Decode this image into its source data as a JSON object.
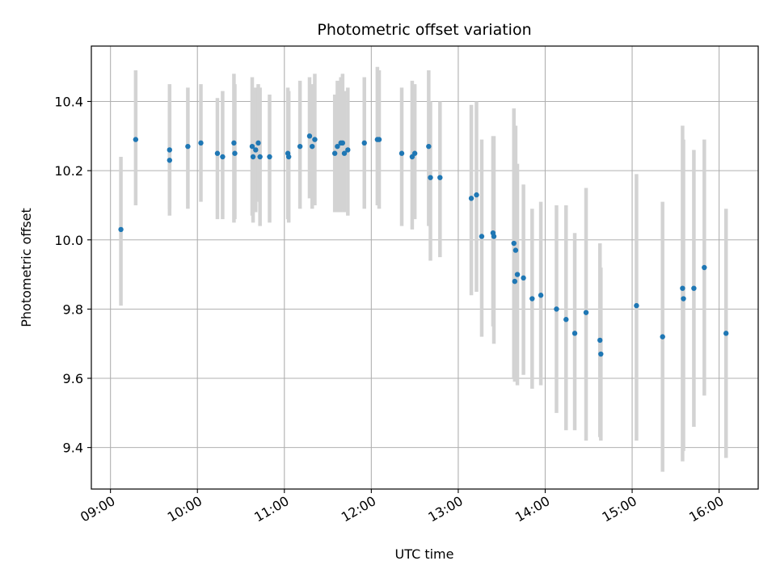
{
  "chart_data": {
    "type": "scatter",
    "title": "Photometric offset variation",
    "xlabel": "UTC time",
    "ylabel": "Photometric offset",
    "x_unit": "hours UTC",
    "xlim": [
      8.78,
      16.45
    ],
    "ylim": [
      9.28,
      10.56
    ],
    "x_ticks": [
      9,
      10,
      11,
      12,
      13,
      14,
      15,
      16
    ],
    "x_tick_labels": [
      "09:00",
      "10:00",
      "11:00",
      "12:00",
      "13:00",
      "14:00",
      "15:00",
      "16:00"
    ],
    "y_ticks": [
      9.4,
      9.6,
      9.8,
      10.0,
      10.2,
      10.4
    ],
    "y_tick_labels": [
      "9.4",
      "9.6",
      "9.8",
      "10.0",
      "10.2",
      "10.4"
    ],
    "grid": true,
    "colors": {
      "points": "#1f77b4",
      "error_bars": "#d3d3d3",
      "grid": "#b0b0b0"
    },
    "series": [
      {
        "x": [
          9.12,
          9.29,
          9.68,
          9.68,
          9.89,
          10.04,
          10.23,
          10.29,
          10.42,
          10.43,
          10.63,
          10.64,
          10.67,
          10.7,
          10.72,
          10.83,
          11.04,
          11.05,
          11.18,
          11.29,
          11.32,
          11.35,
          11.58,
          11.61,
          11.65,
          11.67,
          11.69,
          11.73,
          11.92,
          12.07,
          12.09,
          12.35,
          12.47,
          12.5,
          12.66,
          12.68,
          12.79,
          13.15,
          13.21,
          13.27,
          13.4,
          13.41,
          13.64,
          13.65,
          13.66,
          13.68,
          13.75,
          13.85,
          13.95,
          14.13,
          14.24,
          14.34,
          14.47,
          14.63,
          14.64,
          15.05,
          15.35,
          15.58,
          15.59,
          15.71,
          15.83,
          16.08
        ],
        "y": [
          10.03,
          10.29,
          10.26,
          10.23,
          10.27,
          10.28,
          10.25,
          10.24,
          10.28,
          10.25,
          10.27,
          10.24,
          10.26,
          10.28,
          10.24,
          10.24,
          10.25,
          10.24,
          10.27,
          10.3,
          10.27,
          10.29,
          10.25,
          10.27,
          10.28,
          10.28,
          10.25,
          10.26,
          10.28,
          10.29,
          10.29,
          10.25,
          10.24,
          10.25,
          10.27,
          10.18,
          10.18,
          10.12,
          10.13,
          10.01,
          10.02,
          10.01,
          9.99,
          9.88,
          9.97,
          9.9,
          9.89,
          9.83,
          9.84,
          9.8,
          9.77,
          9.73,
          9.79,
          9.71,
          9.67,
          9.81,
          9.72,
          9.86,
          9.83,
          9.86,
          9.92,
          9.73
        ],
        "lo": [
          9.81,
          10.1,
          10.07,
          10.09,
          10.09,
          10.11,
          10.06,
          10.06,
          10.05,
          10.06,
          10.07,
          10.05,
          10.08,
          10.11,
          10.04,
          10.05,
          10.06,
          10.05,
          10.09,
          10.12,
          10.09,
          10.1,
          10.08,
          10.08,
          10.08,
          10.09,
          10.08,
          10.07,
          10.09,
          10.1,
          10.09,
          10.04,
          10.03,
          10.06,
          10.04,
          9.94,
          9.95,
          9.84,
          9.85,
          9.72,
          9.75,
          9.7,
          9.6,
          9.59,
          9.61,
          9.58,
          9.61,
          9.57,
          9.58,
          9.5,
          9.45,
          9.45,
          9.42,
          9.43,
          9.42,
          9.42,
          9.33,
          9.36,
          9.39,
          9.46,
          9.55,
          9.37
        ],
        "hi": [
          10.24,
          10.49,
          10.45,
          10.39,
          10.44,
          10.45,
          10.41,
          10.43,
          10.48,
          10.45,
          10.47,
          10.43,
          10.44,
          10.45,
          10.44,
          10.42,
          10.44,
          10.43,
          10.46,
          10.47,
          10.45,
          10.48,
          10.42,
          10.46,
          10.47,
          10.48,
          10.43,
          10.44,
          10.47,
          10.5,
          10.49,
          10.44,
          10.46,
          10.45,
          10.49,
          10.4,
          10.4,
          10.39,
          10.4,
          10.29,
          10.3,
          10.3,
          10.38,
          10.18,
          10.33,
          10.22,
          10.16,
          10.09,
          10.11,
          10.1,
          10.1,
          10.02,
          10.15,
          9.99,
          9.92,
          10.19,
          10.11,
          10.33,
          10.29,
          10.26,
          10.29,
          10.09
        ]
      }
    ]
  }
}
